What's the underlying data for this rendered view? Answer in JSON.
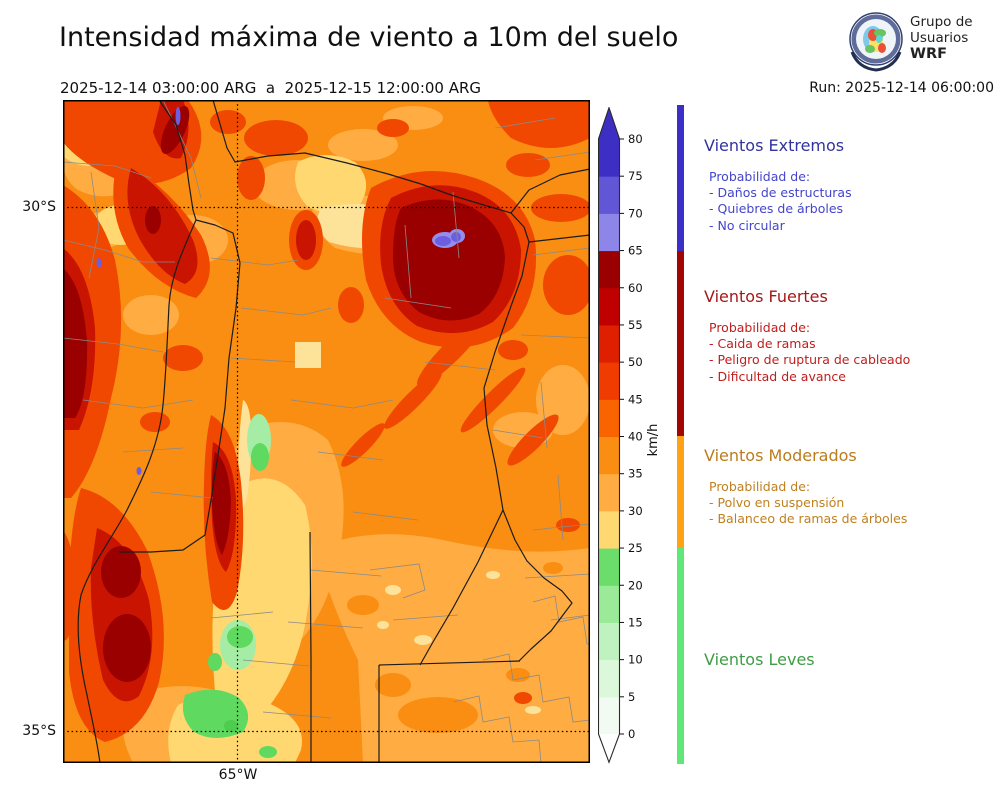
{
  "header": {
    "title": "Intensidad máxima de viento a 10m del suelo",
    "date_range": "2025-12-14 03:00:00 ARG  a  2025-12-15 12:00:00 ARG",
    "run": "Run: 2025-12-14 06:00:00",
    "logo": {
      "line1": "Grupo de",
      "line2": "Usuarios",
      "line3": "WRF"
    }
  },
  "map": {
    "lat_labels": [
      "30°S",
      "35°S"
    ],
    "lon_label": "65°W"
  },
  "colorbar": {
    "unit": "km/h",
    "tick_values": [
      0,
      5,
      10,
      15,
      20,
      25,
      30,
      35,
      40,
      45,
      50,
      55,
      60,
      65,
      70,
      75,
      80
    ],
    "bands_bottom_to_top": [
      {
        "from": 0,
        "to": 5,
        "color": "#F2FBF1"
      },
      {
        "from": 5,
        "to": 10,
        "color": "#DCF8DB"
      },
      {
        "from": 10,
        "to": 15,
        "color": "#BFF2BE"
      },
      {
        "from": 15,
        "to": 20,
        "color": "#9AEA98"
      },
      {
        "from": 20,
        "to": 25,
        "color": "#6BDD6A"
      },
      {
        "from": 25,
        "to": 30,
        "color": "#FFD872"
      },
      {
        "from": 30,
        "to": 35,
        "color": "#FFAC42"
      },
      {
        "from": 35,
        "to": 40,
        "color": "#F98E12"
      },
      {
        "from": 40,
        "to": 45,
        "color": "#FA6400"
      },
      {
        "from": 45,
        "to": 50,
        "color": "#F03C00"
      },
      {
        "from": 50,
        "to": 55,
        "color": "#DE1F00"
      },
      {
        "from": 55,
        "to": 60,
        "color": "#C00000"
      },
      {
        "from": 60,
        "to": 65,
        "color": "#9B0000"
      },
      {
        "from": 65,
        "to": 70,
        "color": "#8D86E8"
      },
      {
        "from": 70,
        "to": 75,
        "color": "#6056D6"
      },
      {
        "from": 75,
        "to": 80,
        "color": "#3D2EC4"
      }
    ],
    "over_color": "#3D2EC4",
    "under_color": "#FFFFFF"
  },
  "category_bar": {
    "segments_top_to_bottom": [
      {
        "name": "extremos",
        "color": "#3B2FC5",
        "from": 65,
        "to": null
      },
      {
        "name": "fuertes",
        "color": "#A30505",
        "from": 40,
        "to": 65
      },
      {
        "name": "moderados",
        "color": "#FFA216",
        "from": 25,
        "to": 40
      },
      {
        "name": "leves",
        "color": "#5FE878",
        "from": null,
        "to": 25
      }
    ]
  },
  "legend": {
    "sections": [
      {
        "title": "Vientos Extremos",
        "title_color": "#32329E",
        "text_color": "#4444CC",
        "intro": "Probabilidad de:",
        "items": [
          "- Daños de estructuras",
          "- Quiebres de árboles",
          "- No circular"
        ]
      },
      {
        "title": "Vientos Fuertes",
        "title_color": "#A61717",
        "text_color": "#C01D1D",
        "intro": "Probabilidad de:",
        "items": [
          "- Caida de ramas",
          "- Peligro de ruptura de cableado",
          "- Dificultad de avance"
        ]
      },
      {
        "title": "Vientos Moderados",
        "title_color": "#BC7C1C",
        "text_color": "#BF8020",
        "intro": "Probabilidad de:",
        "items": [
          "- Polvo en suspensión",
          "- Balanceo de ramas de árboles"
        ]
      },
      {
        "title": "Vientos Leves",
        "title_color": "#3F9C46",
        "text_color": "#3F9C46",
        "intro": "",
        "items": []
      }
    ]
  },
  "chart_data": {
    "type": "heatmap",
    "title": "Intensidad máxima de viento a 10m del suelo",
    "units": "km/h",
    "scale_levels": [
      0,
      5,
      10,
      15,
      20,
      25,
      30,
      35,
      40,
      45,
      50,
      55,
      60,
      65,
      70,
      75,
      80
    ],
    "categories": [
      {
        "name": "Vientos Leves",
        "range_kmh": [
          0,
          25
        ]
      },
      {
        "name": "Vientos Moderados",
        "range_kmh": [
          25,
          40
        ]
      },
      {
        "name": "Vientos Fuertes",
        "range_kmh": [
          40,
          65
        ]
      },
      {
        "name": "Vientos Extremos",
        "range_kmh": [
          65,
          80
        ]
      }
    ],
    "x_ticks": [
      "65°W"
    ],
    "y_ticks": [
      "30°S",
      "35°S"
    ]
  }
}
